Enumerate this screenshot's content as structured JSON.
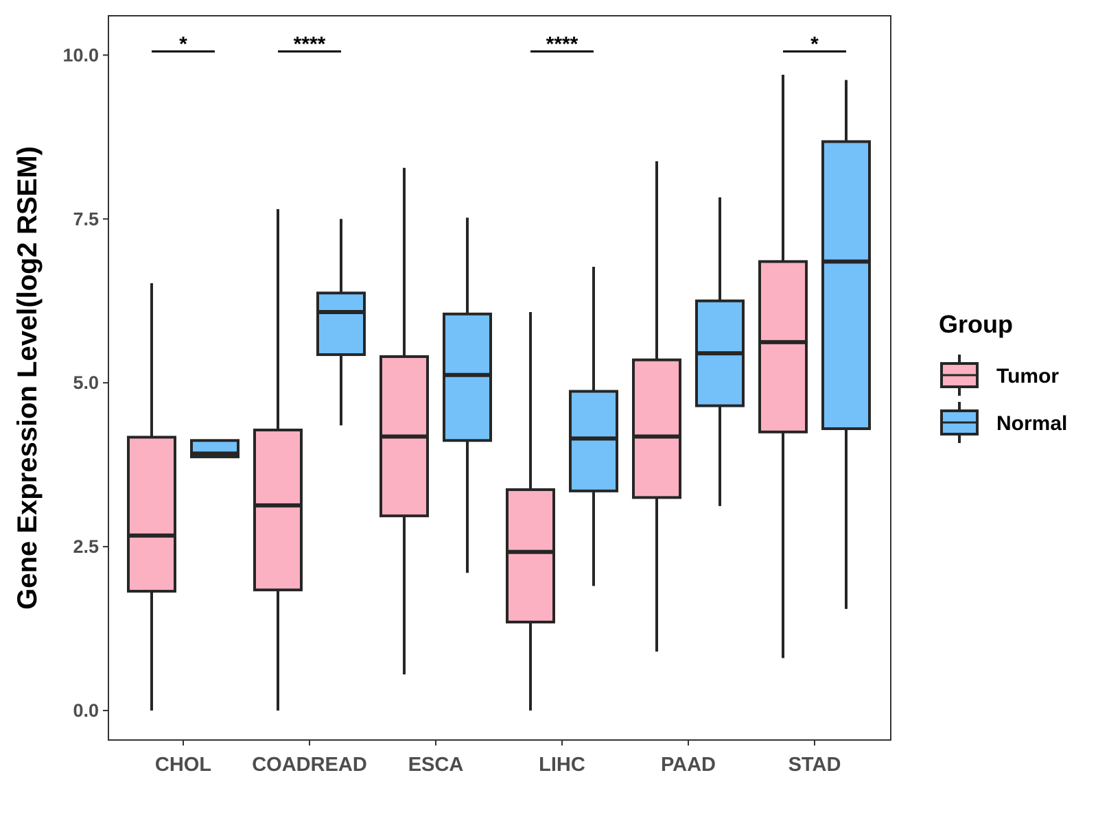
{
  "chart_data": {
    "type": "boxplot",
    "title": "",
    "xlabel": "",
    "ylabel": "Gene Expression Level(log2 RSEM)",
    "ylim": [
      -0.45,
      10.6
    ],
    "yticks": [
      0.0,
      2.5,
      5.0,
      7.5,
      10.0
    ],
    "ytick_labels": [
      "0.0",
      "2.5",
      "5.0",
      "7.5",
      "10.0"
    ],
    "categories": [
      "CHOL",
      "COADREAD",
      "ESCA",
      "LIHC",
      "PAAD",
      "STAD"
    ],
    "grid": false,
    "legend": {
      "title": "Group",
      "position": "right",
      "entries": [
        "Tumor",
        "Normal"
      ]
    },
    "series": [
      {
        "name": "Tumor",
        "color": "#fbb1c1",
        "boxes": [
          {
            "whislo": 0.0,
            "q1": 1.82,
            "med": 2.67,
            "q3": 4.17,
            "whishi": 6.52
          },
          {
            "whislo": 0.0,
            "q1": 1.84,
            "med": 3.13,
            "q3": 4.28,
            "whishi": 7.65
          },
          {
            "whislo": 0.55,
            "q1": 2.97,
            "med": 4.18,
            "q3": 5.4,
            "whishi": 8.28
          },
          {
            "whislo": 0.0,
            "q1": 1.35,
            "med": 2.42,
            "q3": 3.37,
            "whishi": 6.08
          },
          {
            "whislo": 0.9,
            "q1": 3.25,
            "med": 4.18,
            "q3": 5.35,
            "whishi": 8.38
          },
          {
            "whislo": 0.8,
            "q1": 4.25,
            "med": 5.62,
            "q3": 6.85,
            "whishi": 9.7
          }
        ]
      },
      {
        "name": "Normal",
        "color": "#74c0f8",
        "boxes": [
          {
            "whislo": 3.87,
            "q1": 3.87,
            "med": 3.92,
            "q3": 4.12,
            "whishi": 4.12
          },
          {
            "whislo": 4.35,
            "q1": 5.43,
            "med": 6.08,
            "q3": 6.37,
            "whishi": 7.5
          },
          {
            "whislo": 2.1,
            "q1": 4.12,
            "med": 5.12,
            "q3": 6.05,
            "whishi": 7.52
          },
          {
            "whislo": 1.9,
            "q1": 3.35,
            "med": 4.15,
            "q3": 4.87,
            "whishi": 6.77
          },
          {
            "whislo": 3.12,
            "q1": 4.65,
            "med": 5.45,
            "q3": 6.25,
            "whishi": 7.83
          },
          {
            "whislo": 1.55,
            "q1": 4.3,
            "med": 6.85,
            "q3": 8.68,
            "whishi": 9.62
          }
        ]
      }
    ],
    "significance": [
      {
        "category": "CHOL",
        "label": "*"
      },
      {
        "category": "COADREAD",
        "label": "****"
      },
      {
        "category": "LIHC",
        "label": "****"
      },
      {
        "category": "STAD",
        "label": "*"
      }
    ]
  }
}
